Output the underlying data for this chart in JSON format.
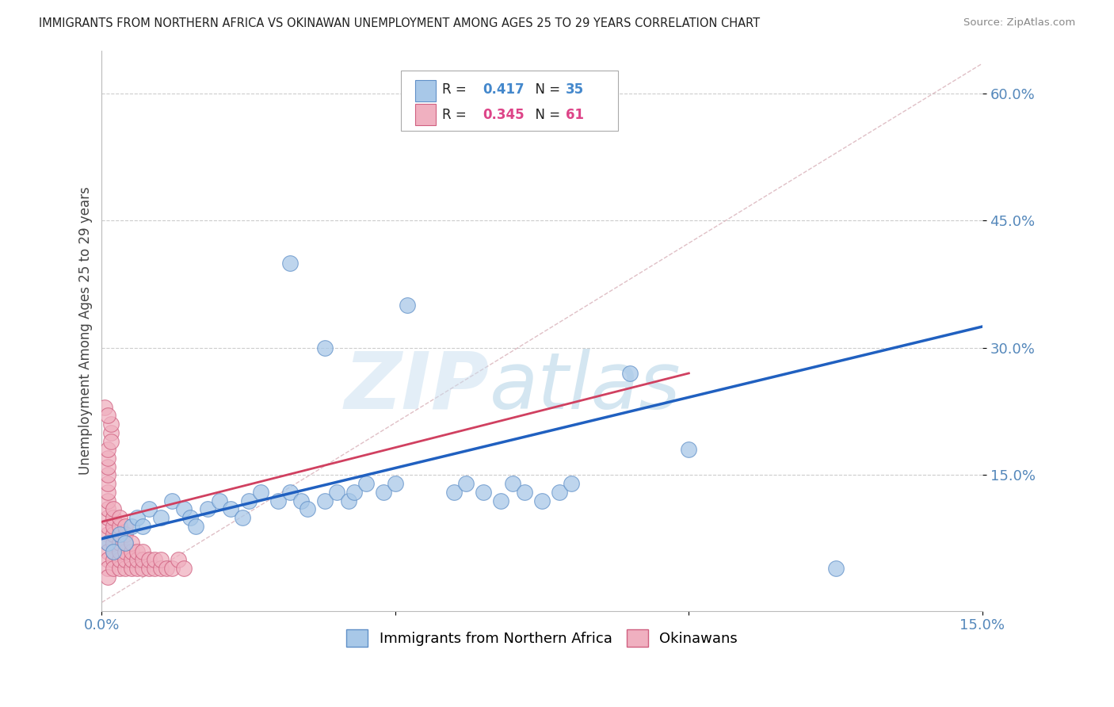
{
  "title": "IMMIGRANTS FROM NORTHERN AFRICA VS OKINAWAN UNEMPLOYMENT AMONG AGES 25 TO 29 YEARS CORRELATION CHART",
  "source_text": "Source: ZipAtlas.com",
  "ylabel": "Unemployment Among Ages 25 to 29 years",
  "xlim": [
    0.0,
    0.15
  ],
  "ylim": [
    -0.01,
    0.65
  ],
  "xticks": [
    0.0,
    0.05,
    0.1,
    0.15
  ],
  "xticklabels": [
    "0.0%",
    "",
    "",
    "15.0%"
  ],
  "yticks_right": [
    0.15,
    0.3,
    0.45,
    0.6
  ],
  "yticklabels_right": [
    "15.0%",
    "30.0%",
    "45.0%",
    "60.0%"
  ],
  "legend_label1": "Immigrants from Northern Africa",
  "legend_label2": "Okinawans",
  "blue_color": "#a8c8e8",
  "blue_edge": "#6090c8",
  "pink_color": "#f0b0c0",
  "pink_edge": "#d06080",
  "blue_scatter": [
    [
      0.001,
      0.07
    ],
    [
      0.002,
      0.06
    ],
    [
      0.003,
      0.08
    ],
    [
      0.004,
      0.07
    ],
    [
      0.005,
      0.09
    ],
    [
      0.006,
      0.1
    ],
    [
      0.007,
      0.09
    ],
    [
      0.008,
      0.11
    ],
    [
      0.01,
      0.1
    ],
    [
      0.012,
      0.12
    ],
    [
      0.014,
      0.11
    ],
    [
      0.015,
      0.1
    ],
    [
      0.016,
      0.09
    ],
    [
      0.018,
      0.11
    ],
    [
      0.02,
      0.12
    ],
    [
      0.022,
      0.11
    ],
    [
      0.024,
      0.1
    ],
    [
      0.025,
      0.12
    ],
    [
      0.027,
      0.13
    ],
    [
      0.03,
      0.12
    ],
    [
      0.032,
      0.13
    ],
    [
      0.034,
      0.12
    ],
    [
      0.035,
      0.11
    ],
    [
      0.038,
      0.12
    ],
    [
      0.04,
      0.13
    ],
    [
      0.042,
      0.12
    ],
    [
      0.043,
      0.13
    ],
    [
      0.045,
      0.14
    ],
    [
      0.048,
      0.13
    ],
    [
      0.05,
      0.14
    ],
    [
      0.052,
      0.35
    ],
    [
      0.06,
      0.13
    ],
    [
      0.062,
      0.14
    ],
    [
      0.065,
      0.13
    ],
    [
      0.068,
      0.12
    ],
    [
      0.07,
      0.14
    ],
    [
      0.072,
      0.13
    ],
    [
      0.075,
      0.12
    ],
    [
      0.078,
      0.13
    ],
    [
      0.08,
      0.14
    ],
    [
      0.032,
      0.4
    ],
    [
      0.09,
      0.27
    ],
    [
      0.1,
      0.18
    ],
    [
      0.125,
      0.04
    ],
    [
      0.038,
      0.3
    ]
  ],
  "pink_scatter": [
    [
      0.0005,
      0.23
    ],
    [
      0.001,
      0.08
    ],
    [
      0.001,
      0.09
    ],
    [
      0.001,
      0.1
    ],
    [
      0.001,
      0.11
    ],
    [
      0.001,
      0.12
    ],
    [
      0.001,
      0.13
    ],
    [
      0.001,
      0.14
    ],
    [
      0.001,
      0.15
    ],
    [
      0.001,
      0.16
    ],
    [
      0.001,
      0.17
    ],
    [
      0.001,
      0.18
    ],
    [
      0.001,
      0.07
    ],
    [
      0.001,
      0.06
    ],
    [
      0.001,
      0.05
    ],
    [
      0.001,
      0.04
    ],
    [
      0.001,
      0.03
    ],
    [
      0.0015,
      0.2
    ],
    [
      0.0015,
      0.21
    ],
    [
      0.0015,
      0.19
    ],
    [
      0.002,
      0.05
    ],
    [
      0.002,
      0.06
    ],
    [
      0.002,
      0.07
    ],
    [
      0.002,
      0.08
    ],
    [
      0.002,
      0.09
    ],
    [
      0.002,
      0.1
    ],
    [
      0.002,
      0.11
    ],
    [
      0.002,
      0.04
    ],
    [
      0.003,
      0.04
    ],
    [
      0.003,
      0.05
    ],
    [
      0.003,
      0.06
    ],
    [
      0.003,
      0.07
    ],
    [
      0.003,
      0.08
    ],
    [
      0.003,
      0.09
    ],
    [
      0.003,
      0.1
    ],
    [
      0.004,
      0.04
    ],
    [
      0.004,
      0.05
    ],
    [
      0.004,
      0.06
    ],
    [
      0.004,
      0.07
    ],
    [
      0.004,
      0.08
    ],
    [
      0.004,
      0.09
    ],
    [
      0.005,
      0.04
    ],
    [
      0.005,
      0.05
    ],
    [
      0.005,
      0.06
    ],
    [
      0.005,
      0.07
    ],
    [
      0.006,
      0.04
    ],
    [
      0.006,
      0.05
    ],
    [
      0.006,
      0.06
    ],
    [
      0.007,
      0.04
    ],
    [
      0.007,
      0.05
    ],
    [
      0.007,
      0.06
    ],
    [
      0.008,
      0.04
    ],
    [
      0.008,
      0.05
    ],
    [
      0.009,
      0.04
    ],
    [
      0.009,
      0.05
    ],
    [
      0.01,
      0.04
    ],
    [
      0.01,
      0.05
    ],
    [
      0.011,
      0.04
    ],
    [
      0.012,
      0.04
    ],
    [
      0.013,
      0.05
    ],
    [
      0.014,
      0.04
    ],
    [
      0.001,
      0.22
    ]
  ],
  "blue_trendline": [
    [
      0.0,
      0.075
    ],
    [
      0.15,
      0.325
    ]
  ],
  "pink_trendline": [
    [
      0.0,
      0.095
    ],
    [
      0.1,
      0.27
    ]
  ],
  "gray_diagline": [
    [
      0.0,
      0.0
    ],
    [
      0.15,
      0.635
    ]
  ],
  "watermark_zip": "ZIP",
  "watermark_atlas": "atlas",
  "background_color": "#ffffff"
}
